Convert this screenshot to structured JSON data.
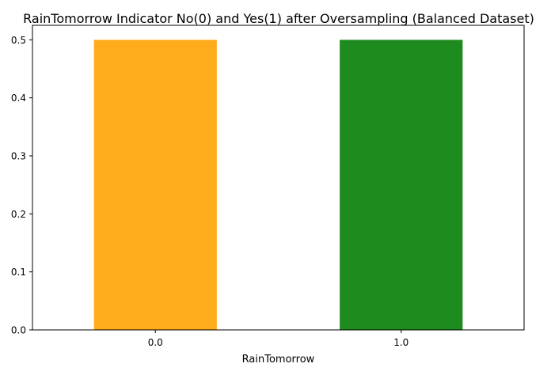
{
  "chart_data": {
    "type": "bar",
    "title": "RainTomorrow Indicator No(0) and Yes(1) after Oversampling (Balanced Dataset)",
    "xlabel": "RainTomorrow",
    "ylabel": "",
    "categories": [
      "0.0",
      "1.0"
    ],
    "values": [
      0.5,
      0.5
    ],
    "colors": [
      "#FFAC1C",
      "#1E8B1E"
    ],
    "ylim": [
      0,
      0.525
    ],
    "yticks": [
      0.0,
      0.1,
      0.2,
      0.3,
      0.4,
      0.5
    ],
    "ytick_labels": [
      "0.0",
      "0.1",
      "0.2",
      "0.3",
      "0.4",
      "0.5"
    ],
    "grid": false,
    "legend": "none"
  }
}
